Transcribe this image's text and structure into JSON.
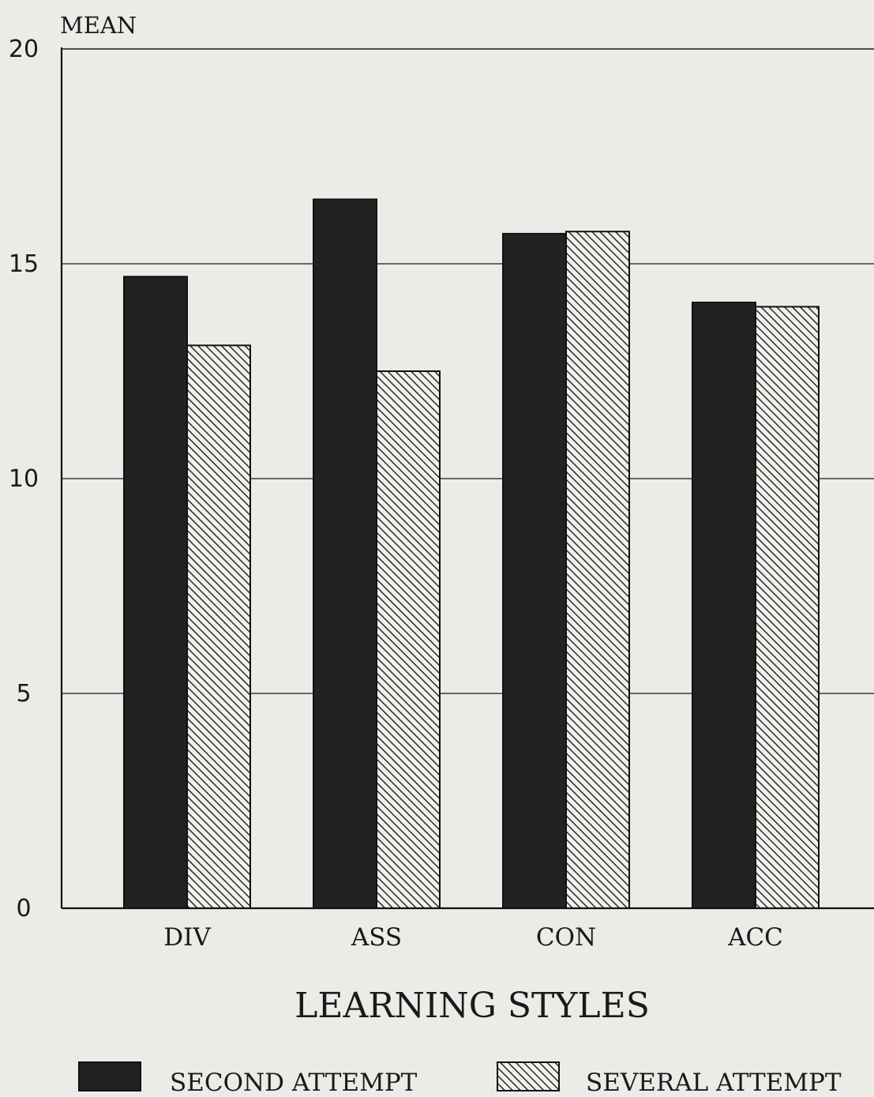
{
  "chart_data": {
    "type": "bar",
    "title": "",
    "ylabel": "MEAN",
    "xlabel": "LEARNING STYLES",
    "categories": [
      "DIV",
      "ASS",
      "CON",
      "ACC"
    ],
    "ylim": [
      0,
      20
    ],
    "yticks": [
      {
        "value": 0,
        "label": "0"
      },
      {
        "value": 5,
        "label": "5"
      },
      {
        "value": 10,
        "label": "10"
      },
      {
        "value": 15,
        "label": "15"
      },
      {
        "value": 20,
        "label": "20"
      }
    ],
    "grid": true,
    "legend_position": "bottom",
    "series": [
      {
        "name": "SECOND ATTEMPT",
        "values": [
          14.7,
          16.5,
          15.7,
          14.1
        ],
        "fill": "solid",
        "color": "#222222"
      },
      {
        "name": "SEVERAL ATTEMPT",
        "values": [
          13.1,
          12.5,
          15.75,
          14.0
        ],
        "fill": "hatch",
        "color": "#2a2a2a"
      }
    ]
  }
}
